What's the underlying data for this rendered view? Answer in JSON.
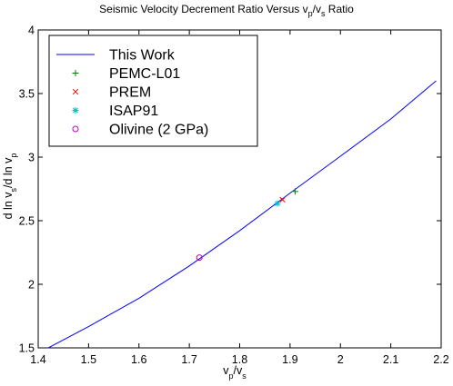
{
  "chart_data": {
    "type": "line",
    "title": {
      "main": "Seismic Velocity Decrement Ratio Versus v",
      "sub1": "p",
      "mid": "/v",
      "sub2": "s",
      "end": " Ratio"
    },
    "xlabel": {
      "a": "v",
      "sub1": "p",
      "mid": "/v",
      "sub2": "s"
    },
    "ylabel": {
      "a": "d ln v",
      "sub1": "s",
      "mid": "/d ln v",
      "sub2": "p"
    },
    "xlim": [
      1.4,
      2.2
    ],
    "ylim": [
      1.5,
      4.0
    ],
    "x_ticks": [
      1.4,
      1.5,
      1.6,
      1.7,
      1.8,
      1.9,
      2.0,
      2.1,
      2.2
    ],
    "x_tick_labels": [
      "1.4",
      "1.5",
      "1.6",
      "1.7",
      "1.8",
      "1.9",
      "2",
      "2.1",
      "2.2"
    ],
    "y_ticks": [
      1.5,
      2.0,
      2.5,
      3.0,
      3.5,
      4.0
    ],
    "y_tick_labels": [
      "1.5",
      "2",
      "2.5",
      "3",
      "3.5",
      "4"
    ],
    "grid": false,
    "legend_position": "top-left",
    "series": [
      {
        "name": "This Work",
        "kind": "line",
        "color": "#0000ff",
        "x": [
          1.42,
          1.5,
          1.6,
          1.7,
          1.8,
          1.9,
          2.0,
          2.1,
          2.19
        ],
        "y": [
          1.5,
          1.667,
          1.89,
          2.144,
          2.422,
          2.717,
          3.007,
          3.3,
          3.6
        ]
      },
      {
        "name": "PEMC-L01",
        "kind": "marker",
        "marker": "plus",
        "color": "#008000",
        "x": [
          1.91
        ],
        "y": [
          2.73
        ]
      },
      {
        "name": "PREM",
        "kind": "marker",
        "marker": "x",
        "color": "#ff0000",
        "x": [
          1.885
        ],
        "y": [
          2.665
        ]
      },
      {
        "name": "ISAP91",
        "kind": "marker",
        "marker": "star",
        "color": "#00bfbf",
        "x": [
          1.875
        ],
        "y": [
          2.635
        ]
      },
      {
        "name": "Olivine (2 GPa)",
        "kind": "marker",
        "marker": "circle",
        "color": "#bf00bf",
        "x": [
          1.72
        ],
        "y": [
          2.21
        ]
      }
    ]
  }
}
